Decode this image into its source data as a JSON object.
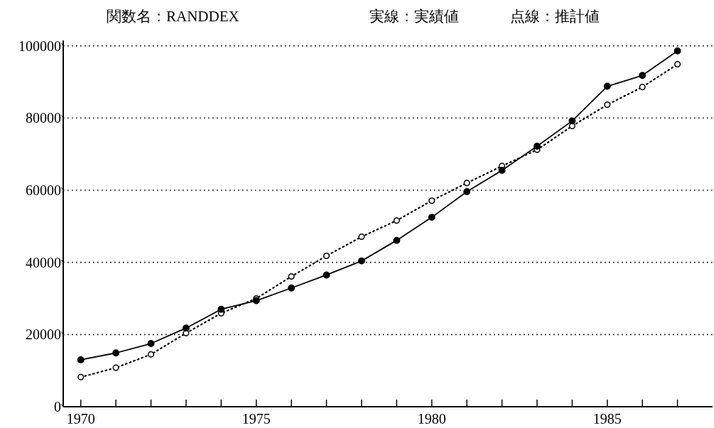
{
  "chart_data": {
    "type": "line",
    "title": "関数名：RANDDEX",
    "annotations": [
      "実線：実績値",
      "点線：推計値"
    ],
    "x": [
      1970,
      1971,
      1972,
      1973,
      1974,
      1975,
      1976,
      1977,
      1978,
      1979,
      1980,
      1981,
      1982,
      1983,
      1984,
      1985,
      1986,
      1987
    ],
    "series": [
      {
        "color": "#000000",
        "line_style": "solid",
        "marker": "circle",
        "values": [
          13000,
          14900,
          17500,
          21800,
          27000,
          29400,
          32900,
          36500,
          40400,
          46100,
          52500,
          59600,
          65500,
          72200,
          79200,
          88800,
          91800,
          98600
        ]
      },
      {
        "color": "#000000",
        "line_style": "dotted",
        "marker": "circle",
        "values": [
          8200,
          10800,
          14500,
          20400,
          25900,
          30000,
          36100,
          41800,
          47100,
          51600,
          57100,
          62000,
          66700,
          71200,
          77800,
          83700,
          88600,
          94900
        ]
      }
    ],
    "xlim": [
      1969.5,
      1988
    ],
    "xticks": [
      1970,
      {
        "value": 1971,
        "label": null
      },
      {
        "value": 1972,
        "label": null
      },
      {
        "value": 1973,
        "label": null
      },
      {
        "value": 1974,
        "label": null
      },
      1975,
      {
        "value": 1976,
        "label": null
      },
      {
        "value": 1977,
        "label": null
      },
      {
        "value": 1978,
        "label": null
      },
      {
        "value": 1979,
        "label": null
      },
      1980,
      {
        "value": 1981,
        "label": null
      },
      {
        "value": 1982,
        "label": null
      },
      {
        "value": 1983,
        "label": null
      },
      {
        "value": 1984,
        "label": null
      },
      1985,
      {
        "value": 1986,
        "label": null
      },
      {
        "value": 1987,
        "label": null
      }
    ],
    "ylim": [
      0,
      101500
    ],
    "yticks": [
      0,
      20000,
      40000,
      60000,
      80000,
      100000
    ],
    "grid": "y"
  }
}
